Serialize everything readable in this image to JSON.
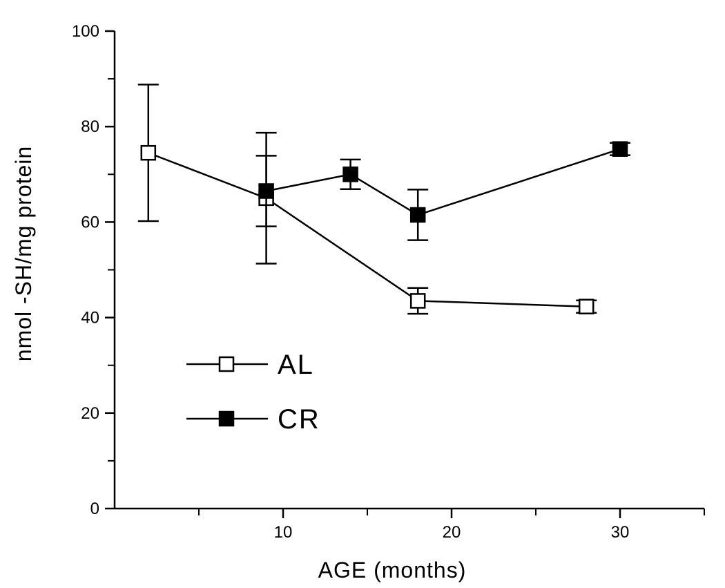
{
  "chart_data": {
    "type": "line",
    "xlabel": "AGE (months)",
    "ylabel": "nmol -SH/mg protein",
    "xlim": [
      0,
      35
    ],
    "ylim": [
      0,
      100
    ],
    "x_ticks": [
      10,
      20,
      30
    ],
    "x_tick_labels": [
      "10",
      "20",
      "30"
    ],
    "x_minor_ticks": [
      5,
      15,
      25,
      35
    ],
    "y_ticks": [
      0,
      20,
      40,
      60,
      80,
      100
    ],
    "y_tick_labels": [
      "0",
      "20",
      "40",
      "60",
      "80",
      "100"
    ],
    "y_minor_ticks": [
      10,
      30,
      50,
      70,
      90
    ],
    "grid": false,
    "legend_position": "lower-left",
    "series": [
      {
        "name": "AL",
        "marker": "open-square",
        "points": [
          {
            "x": 2,
            "y": 74.5,
            "err": 14.3
          },
          {
            "x": 9,
            "y": 65,
            "err": 13.7
          },
          {
            "x": 18,
            "y": 43.5,
            "err": 2.7
          },
          {
            "x": 28,
            "y": 42.3,
            "err": 1.3
          }
        ]
      },
      {
        "name": "CR",
        "marker": "filled-square",
        "points": [
          {
            "x": 9,
            "y": 66.5,
            "err": 7.4
          },
          {
            "x": 14,
            "y": 70,
            "err": 3.1
          },
          {
            "x": 18,
            "y": 61.5,
            "err": 5.3
          },
          {
            "x": 30,
            "y": 75.3,
            "err": 1.3
          }
        ]
      }
    ]
  }
}
